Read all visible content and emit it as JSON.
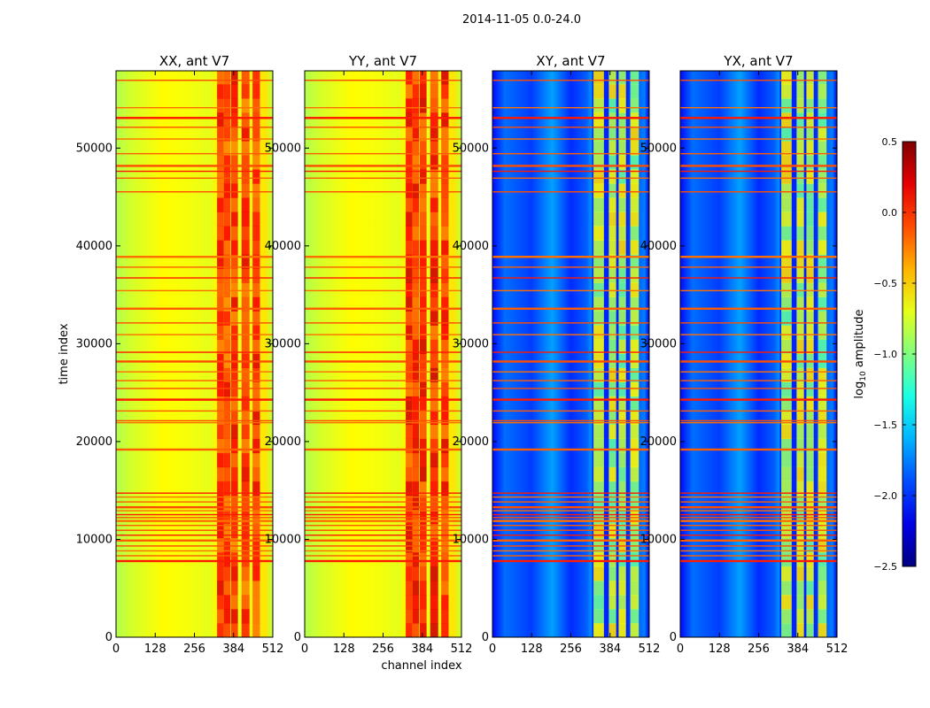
{
  "figure": {
    "suptitle": "2014-11-05 0.0-24.0",
    "colormap": "jet"
  },
  "chart_data": {
    "type": "heatmap",
    "xlabel": "channel index",
    "ylabel": "time index",
    "xlim": [
      0,
      512
    ],
    "ylim": [
      0,
      57900
    ],
    "xticks": [
      0,
      128,
      256,
      384,
      512
    ],
    "yticks": [
      0,
      10000,
      20000,
      30000,
      40000,
      50000
    ],
    "xticklabels": [
      "0",
      "128",
      "256",
      "384",
      "512"
    ],
    "yticklabels": [
      "0",
      "10000",
      "20000",
      "30000",
      "40000",
      "50000"
    ],
    "panels": [
      {
        "title": "XX, ant V7",
        "pol": "XX",
        "base_level": -0.85,
        "band_level": -0.1
      },
      {
        "title": "YY, ant V7",
        "pol": "YY",
        "base_level": -0.75,
        "band_level": -0.05
      },
      {
        "title": "XY, ant V7",
        "pol": "XY",
        "base_level": -1.9,
        "band_level": -0.9
      },
      {
        "title": "YX, ant V7",
        "pol": "YX",
        "base_level": -1.9,
        "band_level": -0.9
      }
    ],
    "colorbar": {
      "label_prefix": "log",
      "label_sub": "10",
      "label_suffix": " amplitude",
      "min": -2.5,
      "max": 0.5,
      "ticks": [
        0.5,
        0.0,
        -0.5,
        -1.0,
        -1.5,
        -2.0,
        -2.5
      ],
      "ticklabels": [
        "0.5",
        "0.0",
        "−0.5",
        "−1.0",
        "−1.5",
        "−2.0",
        "−2.5"
      ]
    },
    "rfi_rows": [
      7800,
      8300,
      8800,
      9300,
      9900,
      10400,
      10900,
      11400,
      11900,
      12200,
      12500,
      12900,
      13300,
      13800,
      14300,
      14700,
      19200,
      21900,
      22100,
      23100,
      24300,
      25400,
      26200,
      27100,
      28200,
      29100,
      30900,
      32100,
      33600,
      35400,
      36700,
      37800,
      38900,
      45500,
      46900,
      47600,
      48200,
      49400,
      50900,
      52100,
      53100,
      54100,
      56900
    ]
  }
}
